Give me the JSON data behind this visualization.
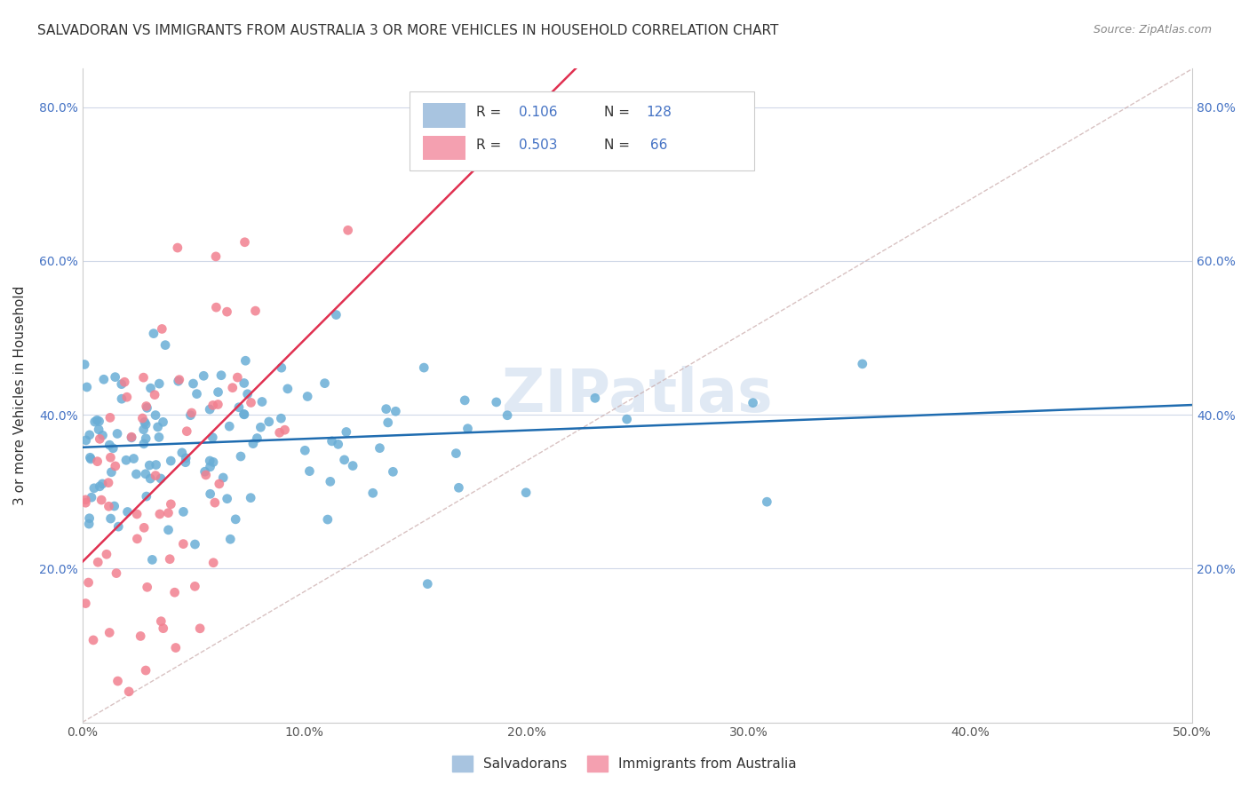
{
  "title": "SALVADORAN VS IMMIGRANTS FROM AUSTRALIA 3 OR MORE VEHICLES IN HOUSEHOLD CORRELATION CHART",
  "source": "Source: ZipAtlas.com",
  "ylabel": "3 or more Vehicles in Household",
  "xlim": [
    0.0,
    0.5
  ],
  "ylim": [
    0.0,
    0.85
  ],
  "xtick_vals": [
    0.0,
    0.1,
    0.2,
    0.3,
    0.4,
    0.5
  ],
  "ytick_vals": [
    0.0,
    0.2,
    0.4,
    0.6,
    0.8
  ],
  "blue_scatter_color": "#6aaed6",
  "pink_scatter_color": "#f28090",
  "blue_line_color": "#1f6cb0",
  "pink_line_color": "#e03050",
  "diagonal_line_color": "#c8a8a8",
  "legend_blue_color": "#a8c4e0",
  "legend_pink_color": "#f4a0b0",
  "watermark": "ZIPatlas",
  "blue_R": 0.106,
  "blue_N": 128,
  "pink_R": 0.503,
  "pink_N": 66,
  "blue_seed": 10,
  "pink_seed": 20
}
